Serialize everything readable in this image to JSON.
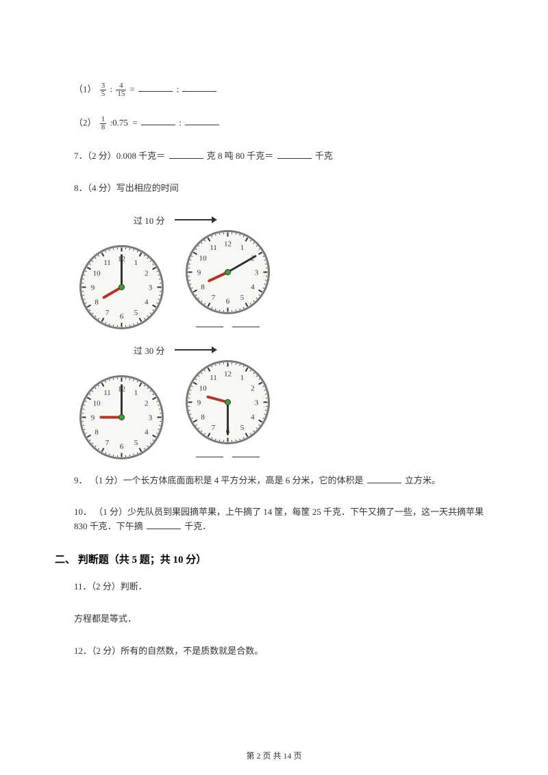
{
  "q_ratio1": {
    "index": "（1）",
    "frac1_num": "3",
    "frac1_den": "5",
    "sep": ":",
    "frac2_num": "4",
    "frac2_den": "15",
    "eq": "="
  },
  "q_ratio2": {
    "index": "（2）",
    "frac1_num": "1",
    "frac1_den": "8",
    "decimal": ":0.75",
    "eq": "="
  },
  "q7": {
    "text_a": "7．（2 分）0.008 千克＝",
    "text_b": "克 8 吨 80 千克＝",
    "text_c": "千克"
  },
  "q8": {
    "header": "8．（4 分）写出相应的时间",
    "group1_label": "过 10 分",
    "group2_label": "过 30 分",
    "clock_style": {
      "face_color": "#f9f7f2",
      "rim_color": "#7a7a7a",
      "tick_color": "#333333",
      "number_color": "#333333",
      "hour_hand_color": "#b0352b",
      "minute_hand_color": "#333333",
      "center_dot_color": "#3aa23a",
      "center_dot_rim": "#333333",
      "radius": 60
    },
    "clock1": {
      "hour": 8,
      "minute": 0
    },
    "clock2": {
      "hour": 8,
      "minute": 10
    },
    "clock3": {
      "hour": 9,
      "minute": 0
    },
    "clock4": {
      "hour": 9,
      "minute": 30
    }
  },
  "q9": {
    "text_a": "9． （1 分）一个长方体底面面积是 4 平方分米，高是 6 分米，它的体积是",
    "text_b": "立方米。"
  },
  "q10": {
    "text_a": "10． （1 分）少先队员到果园摘苹果，上午摘了 14 筐，每筐 25 千克．下午又摘了一些，这一天共摘苹果 830 千克．下午摘",
    "text_b": "千克．"
  },
  "section2_header": "二、 判断题（共 5 题；共 10 分）",
  "q11": {
    "line1": "11．（2 分）判断．",
    "line2": "方程都是等式．"
  },
  "q12": {
    "text": "12．（2 分）所有的自然数，不是质数就是合数。"
  },
  "footer": "第 2 页 共 14 页"
}
